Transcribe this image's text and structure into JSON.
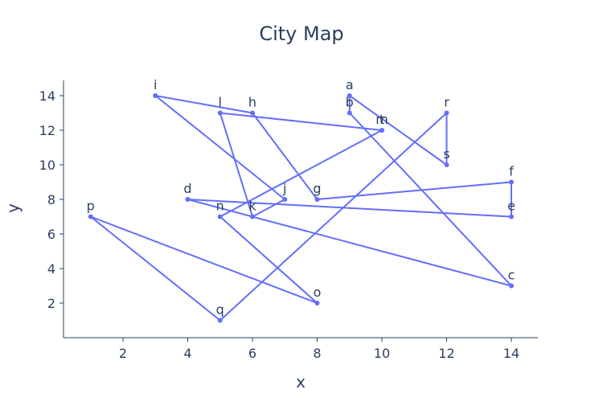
{
  "chart_data": {
    "type": "line",
    "title": "City Map",
    "xlabel": "x",
    "ylabel": "y",
    "xlim": [
      0,
      15
    ],
    "ylim": [
      0,
      15
    ],
    "xticks": [
      2,
      4,
      6,
      8,
      10,
      12,
      14
    ],
    "yticks": [
      2,
      4,
      6,
      8,
      10,
      12,
      14
    ],
    "grid": false,
    "series": [
      {
        "color": "#636efa",
        "points": [
          {
            "label": "a",
            "x": 9,
            "y": 14
          },
          {
            "label": "b",
            "x": 9,
            "y": 13
          },
          {
            "label": "c",
            "x": 14,
            "y": 3
          },
          {
            "label": "d",
            "x": 4,
            "y": 8
          },
          {
            "label": "e",
            "x": 14,
            "y": 7
          },
          {
            "label": "f",
            "x": 14,
            "y": 9
          },
          {
            "label": "g",
            "x": 8,
            "y": 8
          },
          {
            "label": "h",
            "x": 6,
            "y": 13
          },
          {
            "label": "i",
            "x": 3,
            "y": 14
          },
          {
            "label": "j",
            "x": 7,
            "y": 8
          },
          {
            "label": "k",
            "x": 6,
            "y": 7
          },
          {
            "label": "l",
            "x": 5,
            "y": 13
          },
          {
            "label": "m",
            "x": 10,
            "y": 12
          },
          {
            "label": "n",
            "x": 5,
            "y": 7
          },
          {
            "label": "o",
            "x": 8,
            "y": 2
          },
          {
            "label": "p",
            "x": 1,
            "y": 7
          },
          {
            "label": "q",
            "x": 5,
            "y": 1
          },
          {
            "label": "r",
            "x": 12,
            "y": 13
          },
          {
            "label": "s",
            "x": 12,
            "y": 10
          },
          {
            "label": "t",
            "x": 10,
            "y": 12
          }
        ],
        "path": [
          "a",
          "s",
          "r",
          "q",
          "p",
          "o",
          "n",
          "m",
          "l",
          "k",
          "j",
          "i",
          "h",
          "g",
          "f",
          "e",
          "d",
          "c",
          "b",
          "a"
        ]
      }
    ]
  }
}
